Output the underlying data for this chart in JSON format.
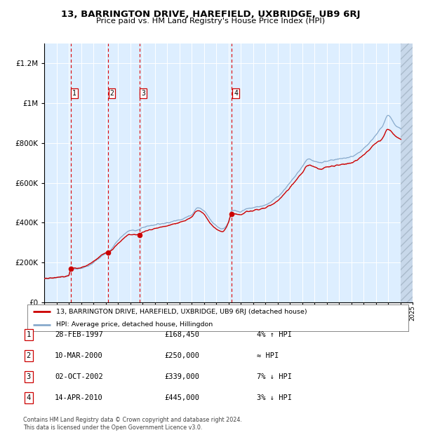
{
  "title": "13, BARRINGTON DRIVE, HAREFIELD, UXBRIDGE, UB9 6RJ",
  "subtitle": "Price paid vs. HM Land Registry's House Price Index (HPI)",
  "legend_house": "13, BARRINGTON DRIVE, HAREFIELD, UXBRIDGE, UB9 6RJ (detached house)",
  "legend_hpi": "HPI: Average price, detached house, Hillingdon",
  "footer1": "Contains HM Land Registry data © Crown copyright and database right 2024.",
  "footer2": "This data is licensed under the Open Government Licence v3.0.",
  "sales": [
    {
      "num": 1,
      "date": "28-FEB-1997",
      "year": 1997.15,
      "price": 168450,
      "rel": "4% ↑ HPI"
    },
    {
      "num": 2,
      "date": "10-MAR-2000",
      "year": 2000.19,
      "price": 250000,
      "rel": "≈ HPI"
    },
    {
      "num": 3,
      "date": "02-OCT-2002",
      "year": 2002.75,
      "price": 339000,
      "rel": "7% ↓ HPI"
    },
    {
      "num": 4,
      "date": "14-APR-2010",
      "year": 2010.28,
      "price": 445000,
      "rel": "3% ↓ HPI"
    }
  ],
  "ylim": [
    0,
    1300000
  ],
  "xlim_start": 1995,
  "xlim_end": 2025,
  "hatch_start": 2024.0,
  "plot_bg": "#ddeeff",
  "hatch_color": "#c8d8ea",
  "grid_color": "#ffffff",
  "red_line_color": "#cc0000",
  "blue_line_color": "#88aacc",
  "dashed_color": "#dd0000",
  "sale_dot_color": "#cc0000",
  "sale_box_color": "#cc0000",
  "hpi_keypoints": [
    [
      1995.0,
      118000
    ],
    [
      1996.0,
      125000
    ],
    [
      1997.0,
      135000
    ],
    [
      1997.15,
      162000
    ],
    [
      1998.0,
      170000
    ],
    [
      1999.0,
      200000
    ],
    [
      2000.0,
      245000
    ],
    [
      2000.19,
      250000
    ],
    [
      2001.0,
      310000
    ],
    [
      2002.0,
      360000
    ],
    [
      2002.75,
      365000
    ],
    [
      2003.0,
      375000
    ],
    [
      2004.0,
      390000
    ],
    [
      2005.0,
      400000
    ],
    [
      2006.0,
      415000
    ],
    [
      2007.0,
      440000
    ],
    [
      2007.5,
      475000
    ],
    [
      2008.0,
      460000
    ],
    [
      2008.5,
      420000
    ],
    [
      2009.0,
      385000
    ],
    [
      2009.5,
      370000
    ],
    [
      2010.0,
      400000
    ],
    [
      2010.28,
      460000
    ],
    [
      2011.0,
      455000
    ],
    [
      2011.5,
      470000
    ],
    [
      2012.0,
      475000
    ],
    [
      2013.0,
      490000
    ],
    [
      2014.0,
      530000
    ],
    [
      2015.0,
      600000
    ],
    [
      2016.0,
      680000
    ],
    [
      2016.5,
      720000
    ],
    [
      2017.0,
      710000
    ],
    [
      2017.5,
      700000
    ],
    [
      2018.0,
      710000
    ],
    [
      2019.0,
      720000
    ],
    [
      2020.0,
      730000
    ],
    [
      2021.0,
      770000
    ],
    [
      2022.0,
      840000
    ],
    [
      2022.5,
      880000
    ],
    [
      2023.0,
      940000
    ],
    [
      2023.5,
      900000
    ],
    [
      2024.0,
      870000
    ]
  ],
  "red_keypoints": [
    [
      1995.0,
      118000
    ],
    [
      1996.0,
      125000
    ],
    [
      1997.0,
      135000
    ],
    [
      1997.15,
      168450
    ],
    [
      1998.0,
      175000
    ],
    [
      1999.0,
      205000
    ],
    [
      2000.0,
      248000
    ],
    [
      2000.19,
      250000
    ],
    [
      2001.0,
      295000
    ],
    [
      2002.0,
      340000
    ],
    [
      2002.75,
      339000
    ],
    [
      2003.0,
      350000
    ],
    [
      2004.0,
      370000
    ],
    [
      2005.0,
      385000
    ],
    [
      2006.0,
      400000
    ],
    [
      2007.0,
      430000
    ],
    [
      2007.5,
      460000
    ],
    [
      2008.0,
      445000
    ],
    [
      2008.5,
      400000
    ],
    [
      2009.0,
      370000
    ],
    [
      2009.5,
      355000
    ],
    [
      2010.0,
      400000
    ],
    [
      2010.28,
      445000
    ],
    [
      2011.0,
      440000
    ],
    [
      2011.5,
      455000
    ],
    [
      2012.0,
      460000
    ],
    [
      2013.0,
      475000
    ],
    [
      2014.0,
      510000
    ],
    [
      2015.0,
      575000
    ],
    [
      2016.0,
      650000
    ],
    [
      2016.5,
      690000
    ],
    [
      2017.0,
      680000
    ],
    [
      2017.5,
      670000
    ],
    [
      2018.0,
      680000
    ],
    [
      2019.0,
      690000
    ],
    [
      2020.0,
      700000
    ],
    [
      2021.0,
      740000
    ],
    [
      2022.0,
      800000
    ],
    [
      2022.5,
      820000
    ],
    [
      2023.0,
      870000
    ],
    [
      2023.5,
      840000
    ],
    [
      2024.0,
      820000
    ]
  ]
}
